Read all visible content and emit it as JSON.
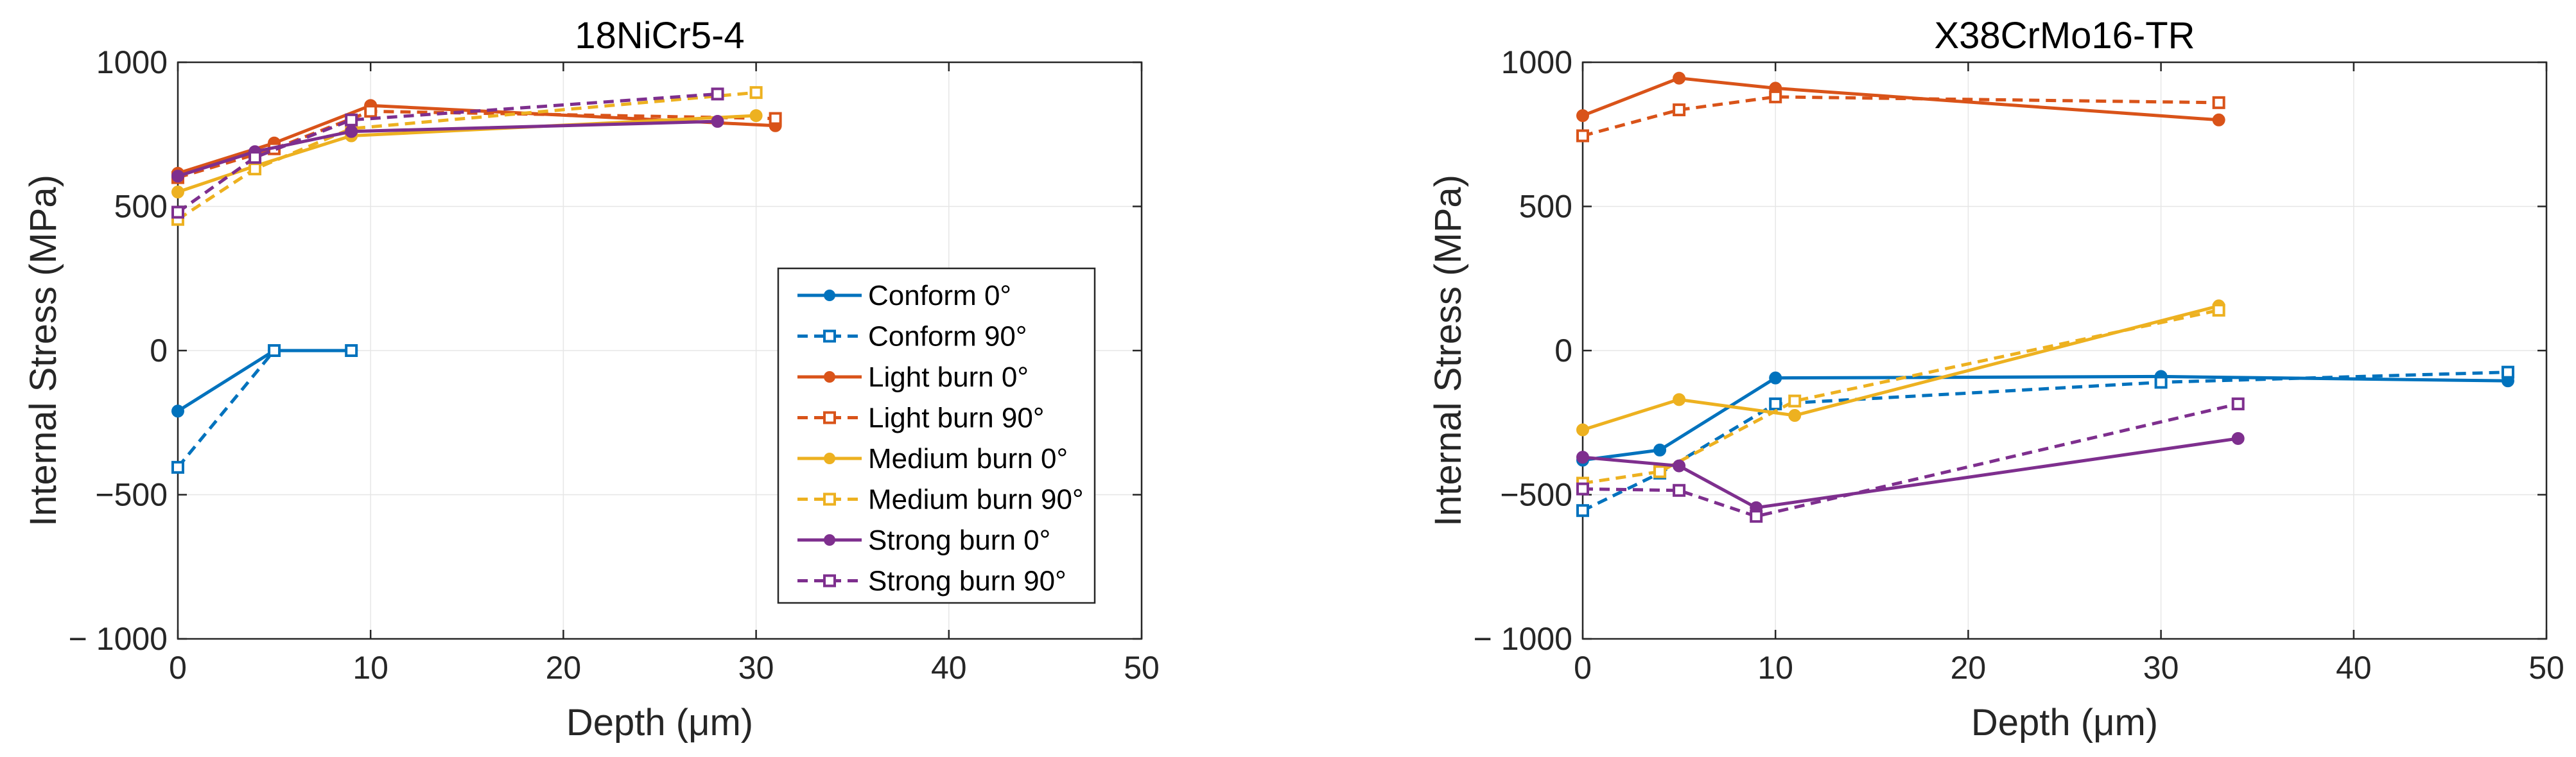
{
  "chart_data": [
    {
      "type": "line",
      "title": "18NiCr5-4",
      "xlabel": "Depth (μm)",
      "ylabel": "Internal Stress (MPa)",
      "xlim": [
        0,
        50
      ],
      "ylim": [
        -1000,
        1000
      ],
      "xticks": [
        0,
        10,
        20,
        30,
        40,
        50
      ],
      "yticks": [
        -1000,
        -500,
        0,
        500,
        1000
      ],
      "xtick_labels": [
        "0",
        "10",
        "20",
        "30",
        "40",
        "50"
      ],
      "ytick_labels": [
        "− 1000",
        "−500",
        "0",
        "500",
        "1000"
      ],
      "grid": true,
      "legend": "inside, lower-right",
      "series": [
        {
          "name": "Conform 0°",
          "color": "#0072BD",
          "dashed": false,
          "marker": "dot",
          "x": [
            0,
            5,
            9
          ],
          "y": [
            -210,
            0,
            0
          ]
        },
        {
          "name": "Conform 90°",
          "color": "#0072BD",
          "dashed": true,
          "marker": "square",
          "x": [
            0,
            5,
            9
          ],
          "y": [
            -405,
            0,
            0
          ]
        },
        {
          "name": "Light burn 0°",
          "color": "#D95319",
          "dashed": false,
          "marker": "dot",
          "x": [
            0,
            5,
            10,
            31
          ],
          "y": [
            615,
            720,
            850,
            780
          ]
        },
        {
          "name": "Light burn 90°",
          "color": "#D95319",
          "dashed": true,
          "marker": "square",
          "x": [
            0,
            5,
            10,
            31
          ],
          "y": [
            600,
            700,
            830,
            805
          ]
        },
        {
          "name": "Medium burn 0°",
          "color": "#EDB120",
          "dashed": false,
          "marker": "dot",
          "x": [
            0,
            4,
            9,
            30
          ],
          "y": [
            550,
            640,
            745,
            815
          ]
        },
        {
          "name": "Medium burn 90°",
          "color": "#EDB120",
          "dashed": true,
          "marker": "square",
          "x": [
            0,
            4,
            9,
            30
          ],
          "y": [
            455,
            630,
            770,
            895
          ]
        },
        {
          "name": "Strong burn 0°",
          "color": "#7E2F8E",
          "dashed": false,
          "marker": "dot",
          "x": [
            0,
            4,
            9,
            28
          ],
          "y": [
            605,
            690,
            760,
            795
          ]
        },
        {
          "name": "Strong burn 90°",
          "color": "#7E2F8E",
          "dashed": true,
          "marker": "square",
          "x": [
            0,
            4,
            9,
            28
          ],
          "y": [
            480,
            670,
            800,
            890
          ]
        }
      ]
    },
    {
      "type": "line",
      "title": "X38CrMo16-TR",
      "xlabel": "Depth (μm)",
      "ylabel": "Internal Stress (MPa)",
      "xlim": [
        0,
        50
      ],
      "ylim": [
        -1000,
        1000
      ],
      "xticks": [
        0,
        10,
        20,
        30,
        40,
        50
      ],
      "yticks": [
        -1000,
        -500,
        0,
        500,
        1000
      ],
      "xtick_labels": [
        "0",
        "10",
        "20",
        "30",
        "40",
        "50"
      ],
      "ytick_labels": [
        "− 1000",
        "−500",
        "0",
        "500",
        "1000"
      ],
      "grid": true,
      "series": [
        {
          "name": "Conform 0°",
          "color": "#0072BD",
          "dashed": false,
          "marker": "dot",
          "x": [
            0,
            4,
            10,
            30,
            48
          ],
          "y": [
            -380,
            -345,
            -95,
            -90,
            -105
          ]
        },
        {
          "name": "Conform 90°",
          "color": "#0072BD",
          "dashed": true,
          "marker": "square",
          "x": [
            0,
            4,
            10,
            30,
            48
          ],
          "y": [
            -555,
            -425,
            -185,
            -110,
            -75
          ]
        },
        {
          "name": "Light burn 0°",
          "color": "#D95319",
          "dashed": false,
          "marker": "dot",
          "x": [
            0,
            5,
            10,
            33
          ],
          "y": [
            815,
            945,
            910,
            800
          ]
        },
        {
          "name": "Light burn 90°",
          "color": "#D95319",
          "dashed": true,
          "marker": "square",
          "x": [
            0,
            5,
            10,
            33
          ],
          "y": [
            745,
            835,
            880,
            860
          ]
        },
        {
          "name": "Medium burn 0°",
          "color": "#EDB120",
          "dashed": false,
          "marker": "dot",
          "x": [
            0,
            5,
            11,
            33
          ],
          "y": [
            -275,
            -170,
            -225,
            155
          ]
        },
        {
          "name": "Medium burn 90°",
          "color": "#EDB120",
          "dashed": true,
          "marker": "square",
          "x": [
            0,
            4,
            11,
            33
          ],
          "y": [
            -460,
            -420,
            -175,
            140
          ]
        },
        {
          "name": "Strong burn 0°",
          "color": "#7E2F8E",
          "dashed": false,
          "marker": "dot",
          "x": [
            0,
            5,
            9,
            34
          ],
          "y": [
            -370,
            -400,
            -545,
            -305
          ]
        },
        {
          "name": "Strong burn 90°",
          "color": "#7E2F8E",
          "dashed": true,
          "marker": "square",
          "x": [
            0,
            5,
            9,
            34
          ],
          "y": [
            -480,
            -485,
            -575,
            -185
          ]
        }
      ]
    }
  ]
}
